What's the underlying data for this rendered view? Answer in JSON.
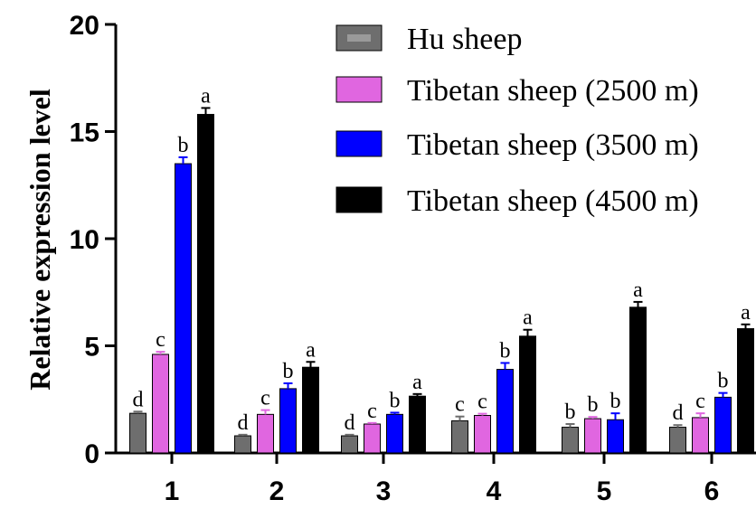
{
  "chart_data": {
    "type": "bar",
    "title": "",
    "xlabel": "",
    "ylabel": "Relative expression level",
    "ylim": [
      0,
      20
    ],
    "yticks": [
      "0",
      "5",
      "10",
      "15",
      "20"
    ],
    "categories": [
      "1",
      "2",
      "3",
      "4",
      "5",
      "6"
    ],
    "grid": false,
    "legend_position": "top-right",
    "series": [
      {
        "name": "Hu sheep",
        "color": "#6e6e6e",
        "values": [
          1.85,
          0.8,
          0.8,
          1.5,
          1.2,
          1.2
        ],
        "errors": [
          0.08,
          0.05,
          0.05,
          0.2,
          0.15,
          0.1
        ],
        "letters": [
          "d",
          "d",
          "d",
          "c",
          "b",
          "d"
        ]
      },
      {
        "name": "Tibetan sheep (2500 m)",
        "color": "#e066e0",
        "values": [
          4.6,
          1.8,
          1.35,
          1.75,
          1.6,
          1.65
        ],
        "errors": [
          0.12,
          0.2,
          0.05,
          0.08,
          0.08,
          0.2
        ],
        "letters": [
          "c",
          "c",
          "c",
          "c",
          "b",
          "c"
        ]
      },
      {
        "name": "Tibetan sheep (3500 m)",
        "color": "#0000ff",
        "values": [
          13.5,
          3.0,
          1.8,
          3.9,
          1.55,
          2.6
        ],
        "errors": [
          0.3,
          0.25,
          0.08,
          0.3,
          0.3,
          0.2
        ],
        "letters": [
          "b",
          "b",
          "b",
          "b",
          "b",
          "b"
        ]
      },
      {
        "name": "Tibetan sheep (4500 m)",
        "color": "#000000",
        "values": [
          15.8,
          4.0,
          2.65,
          5.45,
          6.8,
          5.8
        ],
        "errors": [
          0.3,
          0.25,
          0.1,
          0.3,
          0.25,
          0.2
        ],
        "letters": [
          "a",
          "a",
          "a",
          "a",
          "a",
          "a"
        ]
      }
    ]
  }
}
